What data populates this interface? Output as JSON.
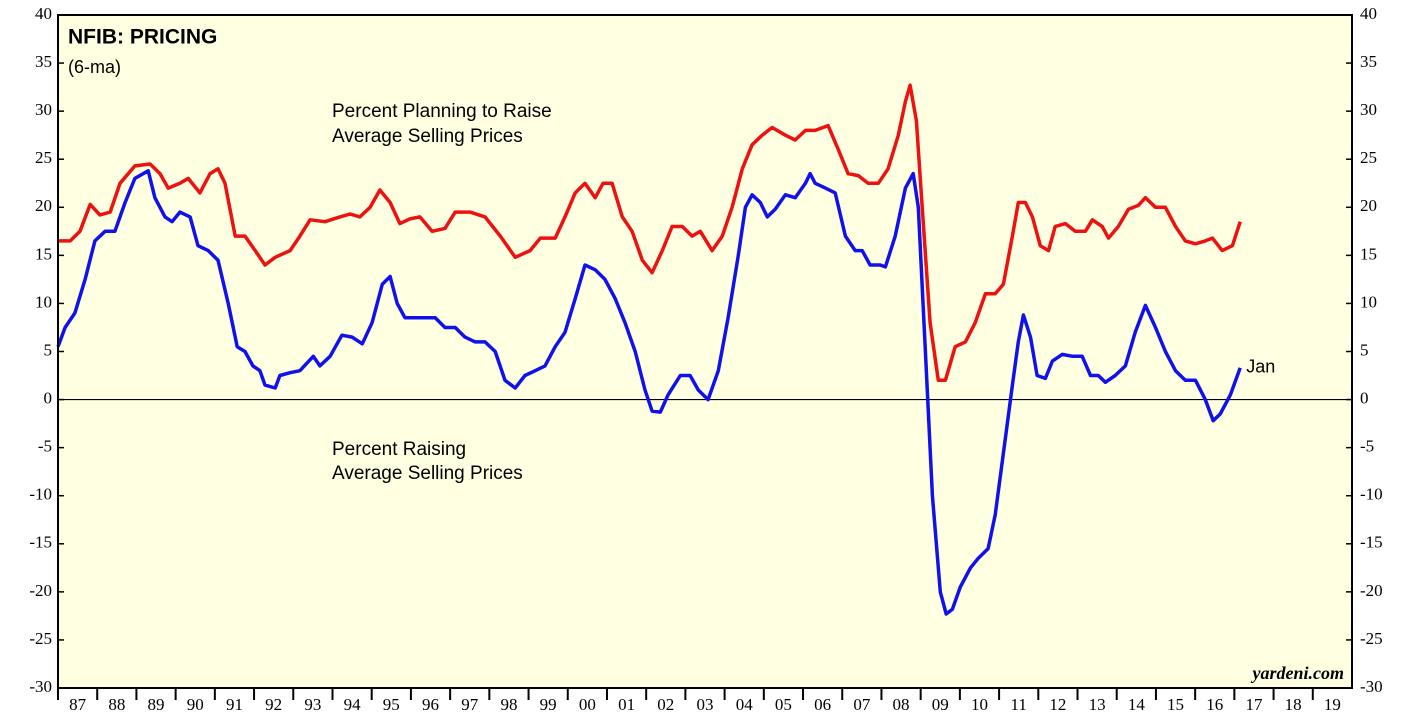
{
  "chart_data": {
    "type": "line",
    "title": "NFIB: PRICING",
    "subtitle": "(6-ma)",
    "source": "yardeni.com",
    "annotations": [
      "Jan"
    ],
    "xlim": [
      1987,
      2020
    ],
    "ylim": [
      -30,
      40
    ],
    "yticks": [
      -30,
      -25,
      -20,
      -15,
      -10,
      -5,
      0,
      5,
      10,
      15,
      20,
      25,
      30,
      35,
      40
    ],
    "xticks": [
      {
        "value": 1987,
        "label": "87"
      },
      {
        "value": 1988,
        "label": "88"
      },
      {
        "value": 1989,
        "label": "89"
      },
      {
        "value": 1990,
        "label": "90"
      },
      {
        "value": 1991,
        "label": "91"
      },
      {
        "value": 1992,
        "label": "92"
      },
      {
        "value": 1993,
        "label": "93"
      },
      {
        "value": 1994,
        "label": "94"
      },
      {
        "value": 1995,
        "label": "95"
      },
      {
        "value": 1996,
        "label": "96"
      },
      {
        "value": 1997,
        "label": "97"
      },
      {
        "value": 1998,
        "label": "98"
      },
      {
        "value": 1999,
        "label": "99"
      },
      {
        "value": 2000,
        "label": "00"
      },
      {
        "value": 2001,
        "label": "01"
      },
      {
        "value": 2002,
        "label": "02"
      },
      {
        "value": 2003,
        "label": "03"
      },
      {
        "value": 2004,
        "label": "04"
      },
      {
        "value": 2005,
        "label": "05"
      },
      {
        "value": 2006,
        "label": "06"
      },
      {
        "value": 2007,
        "label": "07"
      },
      {
        "value": 2008,
        "label": "08"
      },
      {
        "value": 2009,
        "label": "09"
      },
      {
        "value": 2010,
        "label": "10"
      },
      {
        "value": 2011,
        "label": "11"
      },
      {
        "value": 2012,
        "label": "12"
      },
      {
        "value": 2013,
        "label": "13"
      },
      {
        "value": 2014,
        "label": "14"
      },
      {
        "value": 2015,
        "label": "15"
      },
      {
        "value": 2016,
        "label": "16"
      },
      {
        "value": 2017,
        "label": "17"
      },
      {
        "value": 2018,
        "label": "18"
      },
      {
        "value": 2019,
        "label": "19"
      }
    ],
    "zero_line": true,
    "grid": false,
    "series": [
      {
        "name": [
          "Percent Planning to Raise",
          "Average Selling Prices"
        ],
        "color": "#ee1111",
        "x": [
          1987.0,
          1987.31,
          1987.56,
          1987.82,
          1988.07,
          1988.33,
          1988.58,
          1988.96,
          1989.35,
          1989.6,
          1989.81,
          1990.11,
          1990.32,
          1990.62,
          1990.88,
          1991.08,
          1991.26,
          1991.52,
          1991.77,
          1992.03,
          1992.28,
          1992.54,
          1992.92,
          1993.17,
          1993.43,
          1993.81,
          1994.19,
          1994.45,
          1994.7,
          1994.96,
          1995.21,
          1995.47,
          1995.72,
          1995.98,
          1996.23,
          1996.54,
          1996.87,
          1997.13,
          1997.51,
          1997.89,
          1998.28,
          1998.66,
          1999.04,
          1999.3,
          1999.68,
          1999.93,
          2000.19,
          2000.44,
          2000.7,
          2000.9,
          2001.13,
          2001.39,
          2001.64,
          2001.9,
          2002.15,
          2002.41,
          2002.66,
          2002.92,
          2003.17,
          2003.38,
          2003.68,
          2003.94,
          2004.19,
          2004.45,
          2004.7,
          2004.96,
          2005.21,
          2005.55,
          2005.8,
          2006.06,
          2006.31,
          2006.64,
          2006.9,
          2007.15,
          2007.41,
          2007.66,
          2007.92,
          2008.17,
          2008.43,
          2008.61,
          2008.73,
          2008.89,
          2009.04,
          2009.24,
          2009.45,
          2009.63,
          2009.88,
          2010.14,
          2010.39,
          2010.65,
          2010.9,
          2011.11,
          2011.34,
          2011.49,
          2011.67,
          2011.85,
          2012.05,
          2012.26,
          2012.43,
          2012.69,
          2012.94,
          2013.2,
          2013.38,
          2013.63,
          2013.79,
          2014.04,
          2014.3,
          2014.55,
          2014.73,
          2014.99,
          2015.24,
          2015.5,
          2015.75,
          2016.01,
          2016.26,
          2016.44,
          2016.69,
          2016.95,
          2017.15
        ],
        "values": [
          16.5,
          16.5,
          17.5,
          20.3,
          19.2,
          19.5,
          22.5,
          24.3,
          24.5,
          23.5,
          22,
          22.5,
          23,
          21.5,
          23.5,
          24,
          22.5,
          17,
          17,
          15.5,
          14,
          14.8,
          15.5,
          17,
          18.7,
          18.5,
          19,
          19.3,
          19,
          20,
          21.8,
          20.5,
          18.3,
          18.8,
          19,
          17.5,
          17.8,
          19.5,
          19.5,
          19,
          17,
          14.8,
          15.5,
          16.8,
          16.8,
          19,
          21.5,
          22.5,
          21,
          22.5,
          22.5,
          19,
          17.5,
          14.5,
          13.2,
          15.5,
          18,
          18,
          17,
          17.5,
          15.5,
          17,
          20,
          24,
          26.5,
          27.5,
          28.3,
          27.5,
          27,
          28,
          28,
          28.5,
          26,
          23.5,
          23.3,
          22.5,
          22.5,
          24,
          27.5,
          31,
          32.7,
          29,
          20,
          8,
          2,
          2,
          5.5,
          6,
          8,
          11,
          11,
          12,
          17,
          20.5,
          20.5,
          19,
          16,
          15.5,
          18,
          18.3,
          17.5,
          17.5,
          18.7,
          18,
          16.8,
          18,
          19.8,
          20.2,
          21,
          20,
          20,
          18,
          16.5,
          16.2,
          16.5,
          16.8,
          15.5,
          16,
          18.5
        ]
      },
      {
        "name": [
          "Percent Raising",
          "Average Selling Prices"
        ],
        "color": "#1111ee",
        "x": [
          1987.0,
          1987.18,
          1987.43,
          1987.69,
          1987.94,
          1988.2,
          1988.45,
          1988.71,
          1988.96,
          1989.3,
          1989.47,
          1989.73,
          1989.91,
          1990.11,
          1990.37,
          1990.57,
          1990.83,
          1991.08,
          1991.34,
          1991.57,
          1991.77,
          1991.97,
          1992.15,
          1992.28,
          1992.54,
          1992.66,
          1992.92,
          1993.17,
          1993.51,
          1993.68,
          1993.94,
          1994.24,
          1994.5,
          1994.76,
          1995.01,
          1995.27,
          1995.47,
          1995.65,
          1995.85,
          1996.11,
          1996.36,
          1996.62,
          1996.87,
          1997.13,
          1997.38,
          1997.64,
          1997.89,
          1998.15,
          1998.4,
          1998.66,
          1998.91,
          1999.17,
          1999.42,
          1999.68,
          1999.93,
          2000.19,
          2000.44,
          2000.7,
          2000.95,
          2001.21,
          2001.46,
          2001.72,
          2001.97,
          2002.15,
          2002.36,
          2002.56,
          2002.87,
          2003.12,
          2003.33,
          2003.58,
          2003.84,
          2004.09,
          2004.35,
          2004.53,
          2004.7,
          2004.91,
          2005.09,
          2005.29,
          2005.55,
          2005.8,
          2006.06,
          2006.18,
          2006.31,
          2006.57,
          2006.82,
          2007.08,
          2007.33,
          2007.51,
          2007.71,
          2007.97,
          2008.1,
          2008.35,
          2008.61,
          2008.81,
          2008.94,
          2009.12,
          2009.3,
          2009.5,
          2009.65,
          2009.81,
          2010.01,
          2010.27,
          2010.47,
          2010.72,
          2010.9,
          2011.16,
          2011.34,
          2011.49,
          2011.62,
          2011.8,
          2011.97,
          2012.18,
          2012.36,
          2012.61,
          2012.87,
          2013.12,
          2013.33,
          2013.53,
          2013.71,
          2013.96,
          2014.22,
          2014.47,
          2014.73,
          2014.99,
          2015.24,
          2015.5,
          2015.75,
          2016.01,
          2016.26,
          2016.46,
          2016.64,
          2016.9,
          2017.15
        ],
        "values": [
          5.5,
          7.5,
          9,
          12.5,
          16.5,
          17.5,
          17.5,
          20.5,
          23,
          23.8,
          21,
          19,
          18.5,
          19.5,
          19,
          16,
          15.5,
          14.5,
          10,
          5.5,
          5,
          3.5,
          3,
          1.5,
          1.2,
          2.5,
          2.8,
          3,
          4.5,
          3.5,
          4.5,
          6.7,
          6.5,
          5.8,
          8,
          12,
          12.8,
          10,
          8.5,
          8.5,
          8.5,
          8.5,
          7.5,
          7.5,
          6.5,
          6,
          6,
          5,
          2,
          1.2,
          2.5,
          3,
          3.5,
          5.5,
          7,
          10.5,
          14,
          13.5,
          12.5,
          10.5,
          8,
          5,
          1,
          -1.2,
          -1.3,
          0.5,
          2.5,
          2.5,
          1,
          0,
          3,
          8.5,
          15,
          20,
          21.3,
          20.5,
          19,
          19.8,
          21.3,
          21,
          22.5,
          23.5,
          22.5,
          22,
          21.5,
          17,
          15.5,
          15.5,
          14,
          14,
          13.8,
          17,
          22,
          23.5,
          20,
          5,
          -10,
          -20,
          -22.3,
          -21.8,
          -19.5,
          -17.5,
          -16.5,
          -15.5,
          -12,
          -4,
          1.5,
          6,
          8.8,
          6.5,
          2.5,
          2.2,
          4,
          4.7,
          4.5,
          4.5,
          2.5,
          2.5,
          1.8,
          2.5,
          3.5,
          7,
          9.8,
          7.5,
          5,
          3,
          2,
          2,
          0,
          -2.2,
          -1.5,
          0.5,
          3.3
        ]
      }
    ]
  }
}
